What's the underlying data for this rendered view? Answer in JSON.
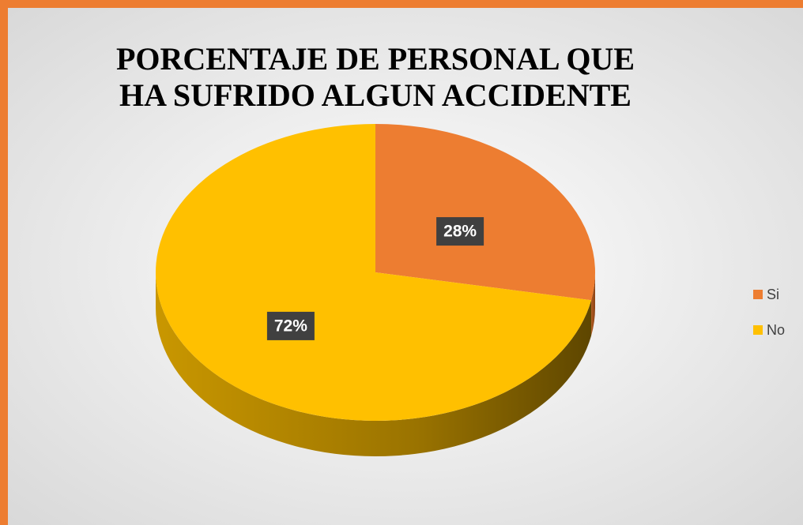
{
  "chart_data": {
    "type": "pie",
    "title": "PORCENTAJE DE PERSONAL QUE HA SUFRIDO ALGUN ACCIDENTE",
    "categories": [
      "Si",
      "No"
    ],
    "values": [
      28,
      72
    ],
    "value_labels": [
      "28%",
      "72%"
    ],
    "colors": [
      "#ed7d31",
      "#ffc000"
    ],
    "legend": "right"
  }
}
